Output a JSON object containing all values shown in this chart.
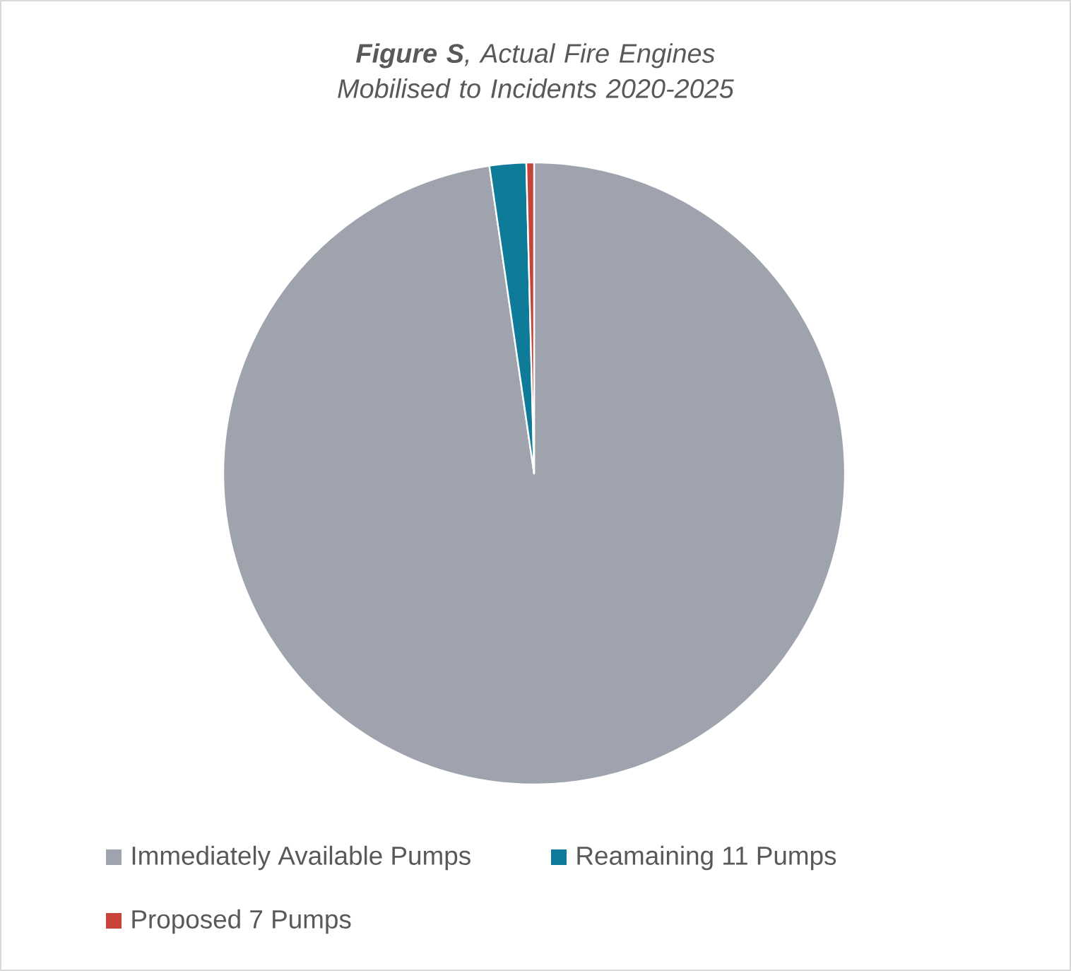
{
  "chart_data": {
    "type": "pie",
    "title": "**Figure S**, Actual Fire Engines Mobilised to Incidents 2020-2025",
    "categories": [
      "Immediately Available  Pumps",
      "Reamaining 11 Pumps",
      "Proposed 7 Pumps"
    ],
    "values": [
      97.7,
      1.9,
      0.4
    ],
    "colors": [
      "#9ea3ad",
      "#0e7c98",
      "#c8433a"
    ],
    "legend": "bottom"
  }
}
